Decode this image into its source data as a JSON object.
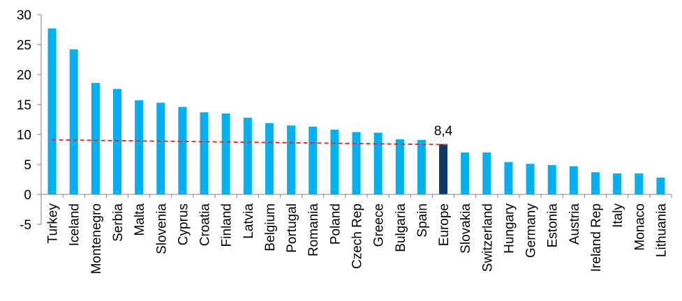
{
  "chart_data": {
    "type": "bar",
    "title": "",
    "xlabel": "",
    "ylabel": "",
    "ylim": [
      -5,
      30
    ],
    "yticks": [
      30,
      25,
      20,
      15,
      10,
      5,
      0,
      -5
    ],
    "categories": [
      "Turkey",
      "Iceland",
      "Montenegro",
      "Serbia",
      "Malta",
      "Slovenia",
      "Cyprus",
      "Croatia",
      "Finland",
      "Latvia",
      "Belgium",
      "Portugal",
      "Romania",
      "Poland",
      "Czech Rep",
      "Greece",
      "Bulgaria",
      "Spain",
      "Europe",
      "Slovakia",
      "Switzerland",
      "Hungary",
      "Germany",
      "Estonia",
      "Austria",
      "Ireland Rep",
      "Italy",
      "Monaco",
      "Lithuania"
    ],
    "values": [
      27.7,
      24.2,
      18.6,
      17.6,
      15.7,
      15.3,
      14.6,
      13.7,
      13.5,
      12.8,
      11.9,
      11.5,
      11.3,
      10.8,
      10.4,
      10.3,
      9.2,
      9.1,
      8.4,
      7.0,
      7.0,
      5.4,
      5.1,
      4.9,
      4.7,
      3.7,
      3.5,
      3.5,
      2.8
    ],
    "highlight": {
      "category": "Europe",
      "label": "8,4"
    },
    "colors": {
      "bar": "#00b0f0",
      "highlight": "#0d3b66",
      "trendline": "#e0312e",
      "axis": "#808080"
    },
    "trendline": {
      "style": "dashed",
      "start": 9.1,
      "end": 8.3
    },
    "grid": false,
    "legend": "none"
  }
}
